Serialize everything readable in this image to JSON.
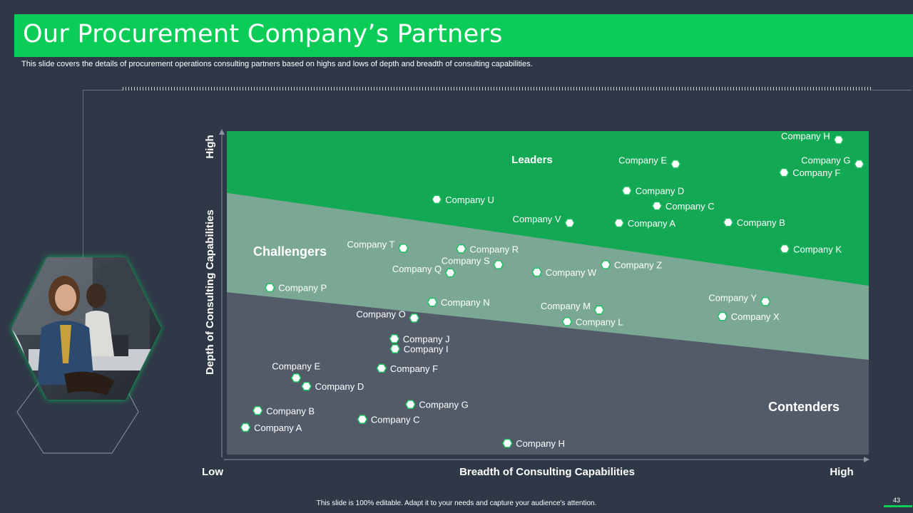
{
  "slide": {
    "title": "Our Procurement Company’s Partners",
    "subtitle": "This slide covers the details of procurement operations consulting partners based on highs and lows of depth and breadth of consulting capabilities.",
    "footer": "This slide is 100% editable.  Adapt it to your needs and capture your audience's attention.",
    "page_number": "43"
  },
  "colors": {
    "background": "#2f3847",
    "accent": "#0bcc57",
    "leaders": "#13a853",
    "challengers": "#7ba894",
    "contenders": "#535b69",
    "marker_fill": "#ffffff",
    "marker_border": "#1fbf62"
  },
  "chart_data": {
    "type": "scatter",
    "xlabel": "Breadth of Consulting Capabilities",
    "ylabel": "Depth of Consulting Capabilities",
    "x_low_label": "Low",
    "x_high_label": "High",
    "y_high_label": "High",
    "xlim": [
      0,
      100
    ],
    "ylim": [
      0,
      100
    ],
    "grid": false,
    "regions": [
      {
        "name": "Leaders",
        "boundary": {
          "left_y": 80.9,
          "right_y": 52.2
        }
      },
      {
        "name": "Challengers",
        "boundary": {
          "left_y": 50.2,
          "right_y": 29.3
        }
      },
      {
        "name": "Contenders"
      }
    ],
    "points": [
      {
        "label": "Company H",
        "x": 95.3,
        "y": 97.3,
        "region": "Leaders",
        "label_side": "left"
      },
      {
        "label": "Company E",
        "x": 69.9,
        "y": 89.8,
        "region": "Leaders",
        "label_side": "left"
      },
      {
        "label": "Company G",
        "x": 98.5,
        "y": 89.8,
        "region": "Leaders",
        "label_side": "left"
      },
      {
        "label": "Company F",
        "x": 86.8,
        "y": 87.2,
        "region": "Leaders",
        "label_side": "right"
      },
      {
        "label": "Company D",
        "x": 62.3,
        "y": 81.6,
        "region": "Leaders",
        "label_side": "right"
      },
      {
        "label": "Company U",
        "x": 32.7,
        "y": 78.9,
        "region": "Leaders",
        "label_side": "right"
      },
      {
        "label": "Company C",
        "x": 67.0,
        "y": 76.9,
        "region": "Leaders",
        "label_side": "right"
      },
      {
        "label": "Company V",
        "x": 53.4,
        "y": 71.6,
        "region": "Leaders",
        "label_side": "left"
      },
      {
        "label": "Company A",
        "x": 61.1,
        "y": 71.6,
        "region": "Leaders",
        "label_side": "right"
      },
      {
        "label": "Company B",
        "x": 78.1,
        "y": 71.8,
        "region": "Leaders",
        "label_side": "right"
      },
      {
        "label": "Company K",
        "x": 86.9,
        "y": 63.6,
        "region": "Leaders",
        "label_side": "right"
      },
      {
        "label": "Company T",
        "x": 27.5,
        "y": 63.8,
        "region": "Challengers",
        "label_side": "left"
      },
      {
        "label": "Company R",
        "x": 36.5,
        "y": 63.6,
        "region": "Challengers",
        "label_side": "right"
      },
      {
        "label": "Company S",
        "x": 42.3,
        "y": 58.7,
        "region": "Challengers",
        "label_side": "left"
      },
      {
        "label": "Company Z",
        "x": 59.0,
        "y": 58.7,
        "region": "Challengers",
        "label_side": "right"
      },
      {
        "label": "Company Q",
        "x": 34.8,
        "y": 56.2,
        "region": "Challengers",
        "label_side": "left"
      },
      {
        "label": "Company W",
        "x": 48.3,
        "y": 56.4,
        "region": "Challengers",
        "label_side": "right"
      },
      {
        "label": "Company P",
        "x": 6.7,
        "y": 51.6,
        "region": "Challengers",
        "label_side": "right"
      },
      {
        "label": "Company N",
        "x": 32.0,
        "y": 47.1,
        "region": "Challengers",
        "label_side": "right"
      },
      {
        "label": "Company Y",
        "x": 83.9,
        "y": 47.3,
        "region": "Challengers",
        "label_side": "left"
      },
      {
        "label": "Company M",
        "x": 58.0,
        "y": 44.7,
        "region": "Challengers",
        "label_side": "left"
      },
      {
        "label": "Company X",
        "x": 77.2,
        "y": 42.7,
        "region": "Challengers",
        "label_side": "right"
      },
      {
        "label": "Company L",
        "x": 53.0,
        "y": 41.1,
        "region": "Challengers",
        "label_side": "right"
      },
      {
        "label": "Company O",
        "x": 29.2,
        "y": 42.2,
        "region": "Contenders",
        "label_side": "left"
      },
      {
        "label": "Company J",
        "x": 26.1,
        "y": 35.8,
        "region": "Contenders",
        "label_side": "right"
      },
      {
        "label": "Company I",
        "x": 26.2,
        "y": 32.7,
        "region": "Contenders",
        "label_side": "right"
      },
      {
        "label": "Company F",
        "x": 24.1,
        "y": 26.7,
        "region": "Contenders",
        "label_side": "right"
      },
      {
        "label": "Company E",
        "x": 10.8,
        "y": 23.7,
        "region": "Contenders",
        "label_side": "above"
      },
      {
        "label": "Company D",
        "x": 12.4,
        "y": 21.1,
        "region": "Contenders",
        "label_side": "right"
      },
      {
        "label": "Company G",
        "x": 28.6,
        "y": 15.5,
        "region": "Contenders",
        "label_side": "right"
      },
      {
        "label": "Company B",
        "x": 4.8,
        "y": 13.6,
        "region": "Contenders",
        "label_side": "right"
      },
      {
        "label": "Company C",
        "x": 21.1,
        "y": 10.9,
        "region": "Contenders",
        "label_side": "right"
      },
      {
        "label": "Company A",
        "x": 2.9,
        "y": 8.4,
        "region": "Contenders",
        "label_side": "right"
      },
      {
        "label": "Company H",
        "x": 43.7,
        "y": 3.5,
        "region": "Contenders",
        "label_side": "right"
      }
    ]
  }
}
